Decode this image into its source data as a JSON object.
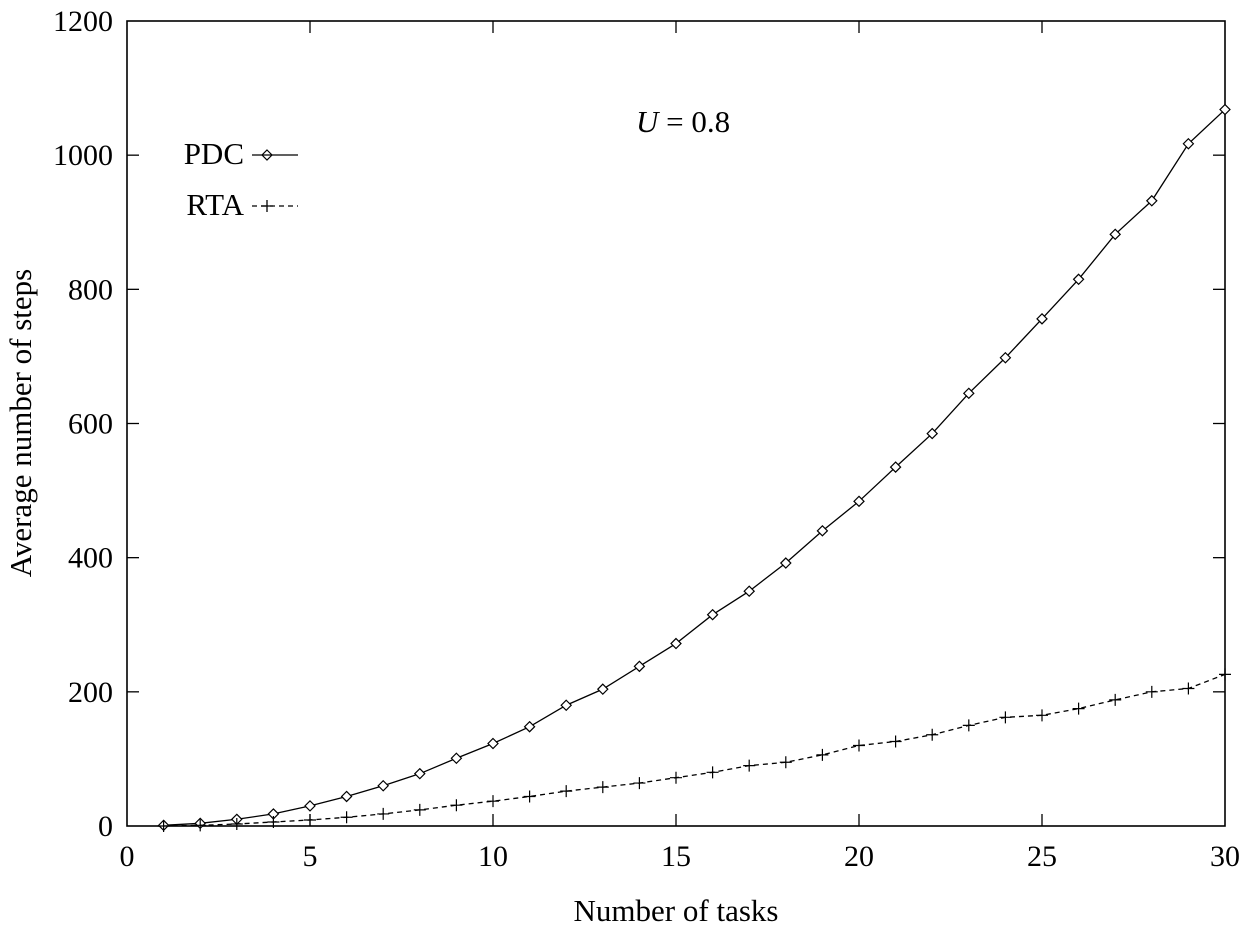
{
  "chart_data": {
    "type": "line",
    "title": "",
    "xlabel": "Number of tasks",
    "ylabel": "Average number of steps",
    "xlim": [
      0,
      30
    ],
    "ylim": [
      0,
      1200
    ],
    "xticks": [
      0,
      5,
      10,
      15,
      20,
      25,
      30
    ],
    "yticks": [
      0,
      200,
      400,
      600,
      800,
      1000,
      1200
    ],
    "xtick_labels": [
      "0",
      "5",
      "10",
      "15",
      "20",
      "25",
      "30"
    ],
    "ytick_labels": [
      "0",
      "200",
      "400",
      "600",
      "800",
      "1000",
      "1200"
    ],
    "grid": false,
    "legend_position": "top-left",
    "annotation": {
      "variable": "U",
      "rest": " = 0.8"
    },
    "x": [
      1,
      2,
      3,
      4,
      5,
      6,
      7,
      8,
      9,
      10,
      11,
      12,
      13,
      14,
      15,
      16,
      17,
      18,
      19,
      20,
      21,
      22,
      23,
      24,
      25,
      26,
      27,
      28,
      29,
      30
    ],
    "series": [
      {
        "name": "PDC",
        "marker": "diamond",
        "line_style": "solid",
        "color": "#000000",
        "values": [
          1,
          4,
          10,
          18,
          30,
          44,
          60,
          78,
          101,
          123,
          148,
          180,
          204,
          238,
          272,
          315,
          350,
          392,
          440,
          484,
          535,
          585,
          645,
          698,
          756,
          815,
          882,
          932,
          1017,
          1068
        ]
      },
      {
        "name": "RTA",
        "marker": "plus",
        "line_style": "dashed",
        "color": "#000000",
        "values": [
          0,
          1,
          3,
          6,
          9,
          13,
          18,
          24,
          31,
          37,
          44,
          52,
          58,
          64,
          72,
          80,
          90,
          95,
          106,
          120,
          126,
          136,
          150,
          162,
          165,
          175,
          188,
          200,
          205,
          226
        ]
      }
    ]
  }
}
